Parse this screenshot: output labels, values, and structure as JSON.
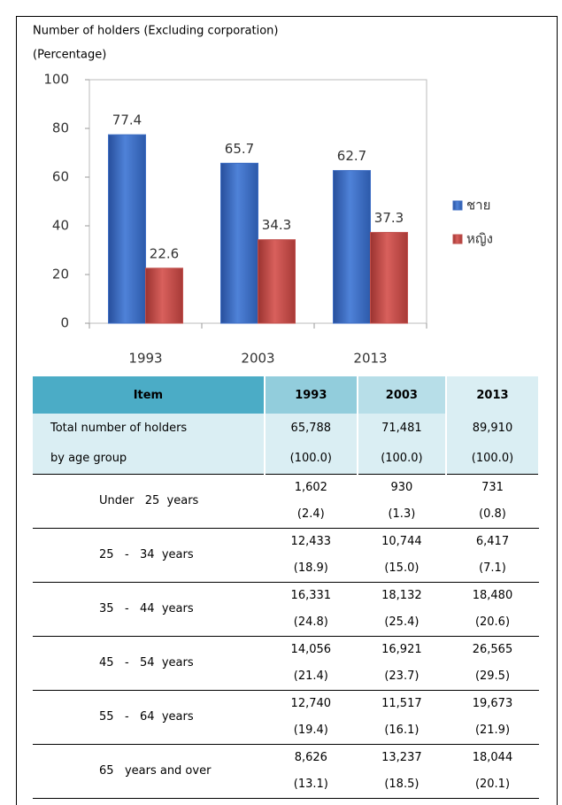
{
  "chart_data": {
    "type": "bar",
    "title": "Number of holders (Excluding corporation)",
    "subtitle": "(Percentage)",
    "categories": [
      "1993",
      "2003",
      "2013"
    ],
    "series": [
      {
        "name": "ชาย",
        "color": "#3e6ec4",
        "values": [
          77.4,
          65.7,
          62.7
        ]
      },
      {
        "name": "หญิง",
        "color": "#c0504d",
        "values": [
          22.6,
          34.3,
          37.3
        ]
      }
    ],
    "ylim": [
      0,
      100
    ],
    "yticks": [
      0,
      20,
      40,
      60,
      80,
      100
    ],
    "grid": false,
    "legend": "right"
  },
  "table": {
    "header": [
      "Item",
      "1993",
      "2003",
      "2013"
    ],
    "rows": [
      {
        "label": [
          "Total number of holders",
          "by age group"
        ],
        "cells": [
          [
            "65,788",
            "(100.0)"
          ],
          [
            "71,481",
            "(100.0)"
          ],
          [
            "89,910",
            "(100.0)"
          ]
        ]
      },
      {
        "label": [
          "Under   25  years"
        ],
        "cells": [
          [
            "1,602",
            "(2.4)"
          ],
          [
            "930",
            "(1.3)"
          ],
          [
            "731",
            "(0.8)"
          ]
        ]
      },
      {
        "label": [
          "25   -   34  years"
        ],
        "cells": [
          [
            "12,433",
            "(18.9)"
          ],
          [
            "10,744",
            "(15.0)"
          ],
          [
            "6,417",
            "(7.1)"
          ]
        ]
      },
      {
        "label": [
          "35   -   44  years"
        ],
        "cells": [
          [
            "16,331",
            "(24.8)"
          ],
          [
            "18,132",
            "(25.4)"
          ],
          [
            "18,480",
            "(20.6)"
          ]
        ]
      },
      {
        "label": [
          "45   -   54  years"
        ],
        "cells": [
          [
            "14,056",
            "(21.4)"
          ],
          [
            "16,921",
            "(23.7)"
          ],
          [
            "26,565",
            "(29.5)"
          ]
        ]
      },
      {
        "label": [
          "55   -   64  years"
        ],
        "cells": [
          [
            "12,740",
            "(19.4)"
          ],
          [
            "11,517",
            "(16.1)"
          ],
          [
            "19,673",
            "(21.9)"
          ]
        ]
      },
      {
        "label": [
          "65   years and over"
        ],
        "cells": [
          [
            "8,626",
            "(13.1)"
          ],
          [
            "13,237",
            "(18.5)"
          ],
          [
            "18,044",
            "(20.1)"
          ]
        ]
      }
    ]
  }
}
